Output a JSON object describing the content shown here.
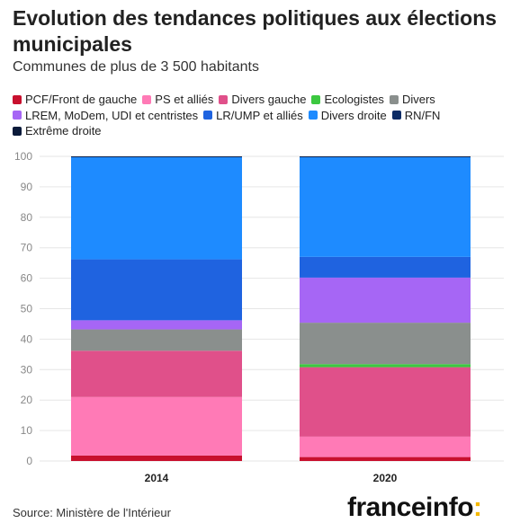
{
  "header": {
    "title": "Evolution des tendances politiques aux élections municipales",
    "subtitle": "Communes de plus de 3 500 habitants"
  },
  "footer": {
    "source": "Source: Ministère de l'Intérieur",
    "logo_text": "franceinfo",
    "logo_colon": ":"
  },
  "colors": {
    "grid": "#e6e6e6",
    "axis_text": "#888888",
    "logo_accent": "#f5b800"
  },
  "chart_data": {
    "type": "bar",
    "stacked": true,
    "categories": [
      "2014",
      "2020"
    ],
    "ylim": [
      0,
      100
    ],
    "yticks": [
      0,
      10,
      20,
      30,
      40,
      50,
      60,
      70,
      80,
      90,
      100
    ],
    "grid": true,
    "legend_position": "top",
    "series": [
      {
        "name": "PCF/Front de gauche",
        "color": "#c8102e",
        "values": [
          1.8,
          1.3
        ]
      },
      {
        "name": "PS et alliés",
        "color": "#ff7ab6",
        "values": [
          19.2,
          6.7
        ]
      },
      {
        "name": "Divers gauche",
        "color": "#e0508a",
        "values": [
          15.2,
          22.8
        ]
      },
      {
        "name": "Ecologistes",
        "color": "#3cc840",
        "values": [
          0.0,
          1.0
        ]
      },
      {
        "name": "Divers",
        "color": "#8a8f8d",
        "values": [
          7.0,
          13.6
        ]
      },
      {
        "name": "LREM, MoDem, UDI et centristes",
        "color": "#a666f5",
        "values": [
          3.0,
          14.8
        ]
      },
      {
        "name": "LR/UMP et alliés",
        "color": "#1f63e0",
        "values": [
          20.0,
          6.8
        ]
      },
      {
        "name": "Divers droite",
        "color": "#1e8bff",
        "values": [
          33.5,
          32.7
        ]
      },
      {
        "name": "RN/FN",
        "color": "#0c2c66",
        "values": [
          0.2,
          0.2
        ]
      },
      {
        "name": "Extrême droite",
        "color": "#0a1a3a",
        "values": [
          0.1,
          0.1
        ]
      }
    ]
  }
}
